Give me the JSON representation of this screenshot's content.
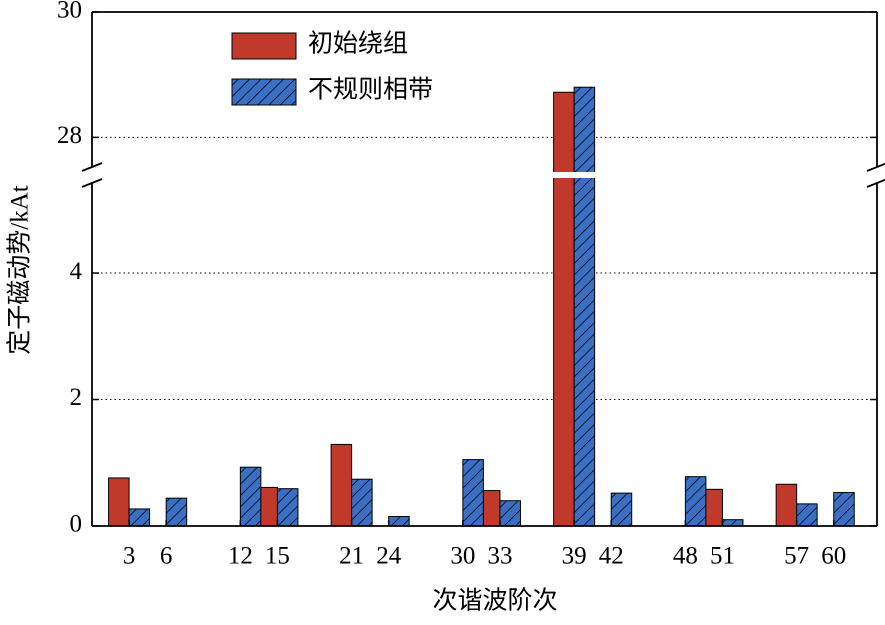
{
  "chart_data": {
    "type": "bar",
    "x_label": "次谐波阶次",
    "y_label": "定子磁动势/kAt",
    "x": [
      3,
      6,
      12,
      15,
      21,
      24,
      30,
      33,
      39,
      42,
      48,
      51,
      57,
      60
    ],
    "xlim": [
      0,
      63.5
    ],
    "xticks": [
      3,
      6,
      12,
      15,
      21,
      24,
      30,
      33,
      39,
      42,
      48,
      51,
      57,
      60
    ],
    "ylim": [
      0,
      30
    ],
    "ybreak": [
      5.55,
      27.4
    ],
    "yticks": [
      0,
      2,
      4,
      28,
      30
    ],
    "grid": true,
    "legend": "upper left",
    "series": [
      {
        "name": "初始绕组",
        "color": "#c0392b",
        "values": [
          0.76,
          null,
          null,
          0.61,
          1.29,
          null,
          null,
          0.56,
          28.72,
          null,
          null,
          0.58,
          0.66,
          null
        ]
      },
      {
        "name": "不规则相带",
        "color": "#3a6fc4",
        "hatch": true,
        "values": [
          0.27,
          0.44,
          0.93,
          0.59,
          0.74,
          0.15,
          1.05,
          0.4,
          28.8,
          0.52,
          0.78,
          0.1,
          0.35,
          0.53
        ]
      }
    ]
  }
}
